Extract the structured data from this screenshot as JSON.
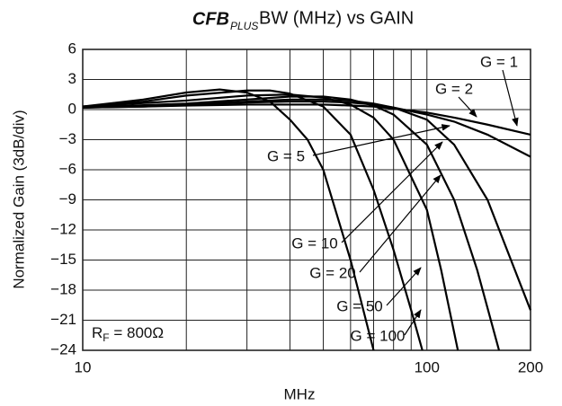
{
  "chart_data": {
    "type": "line",
    "logo": "CFB",
    "logo_sub": "PLUS",
    "title": "BW (MHz) vs GAIN",
    "xlabel": "MHz",
    "ylabel": "Normalized Gain (3dB/div)",
    "xscale": "log",
    "xlim": [
      10,
      200
    ],
    "xticks": [
      10,
      100,
      200
    ],
    "xminor": [
      20,
      30,
      40,
      50,
      60,
      70,
      80,
      90
    ],
    "ylim": [
      -24,
      6
    ],
    "yticks": [
      6,
      3,
      0,
      {
        "value": -3,
        "label": "−3"
      },
      {
        "value": -6,
        "label": "−6"
      },
      {
        "value": -9,
        "label": "−9"
      },
      {
        "value": -12,
        "label": "−12"
      },
      {
        "value": -15,
        "label": "−15"
      },
      {
        "value": -18,
        "label": "−18"
      },
      {
        "value": -21,
        "label": "−21"
      },
      {
        "value": -24,
        "label": "−24"
      }
    ],
    "grid": true,
    "rf_label": {
      "main": "R",
      "sub": "F",
      "rest": " = 800Ω"
    },
    "series": [
      {
        "name": "G = 1",
        "color": "#000000",
        "x": [
          10,
          15,
          20,
          30,
          40,
          50,
          60,
          70,
          80,
          100,
          120,
          150,
          200
        ],
        "values": [
          0.2,
          0.3,
          0.4,
          0.5,
          0.5,
          0.5,
          0.4,
          0.3,
          0.1,
          -0.3,
          -0.8,
          -1.5,
          -2.5
        ]
      },
      {
        "name": "G = 2",
        "color": "#000000",
        "x": [
          10,
          15,
          20,
          30,
          40,
          50,
          60,
          70,
          80,
          100,
          120,
          150,
          200
        ],
        "values": [
          0.2,
          0.3,
          0.5,
          0.7,
          0.8,
          0.8,
          0.7,
          0.5,
          0.2,
          -0.5,
          -1.2,
          -2.5,
          -4.7
        ]
      },
      {
        "name": "G = 5",
        "color": "#000000",
        "x": [
          10,
          20,
          30,
          40,
          50,
          60,
          70,
          80,
          100,
          120,
          150,
          200
        ],
        "values": [
          0.2,
          0.5,
          0.8,
          1.0,
          1.0,
          0.9,
          0.6,
          0.2,
          -1.0,
          -3.5,
          -9,
          -20
        ]
      },
      {
        "name": "G = 10",
        "color": "#000000",
        "x": [
          10,
          20,
          30,
          40,
          50,
          60,
          70,
          80,
          100,
          120,
          140,
          162
        ],
        "values": [
          0.2,
          0.6,
          1.0,
          1.3,
          1.3,
          1.0,
          0.4,
          -0.5,
          -3.5,
          -9,
          -16,
          -24
        ]
      },
      {
        "name": "G = 20",
        "color": "#000000",
        "x": [
          10,
          20,
          30,
          40,
          50,
          60,
          70,
          80,
          100,
          110,
          123
        ],
        "values": [
          0.3,
          0.9,
          1.4,
          1.5,
          1.2,
          0.5,
          -0.8,
          -3,
          -10,
          -16,
          -24
        ]
      },
      {
        "name": "G = 50",
        "color": "#000000",
        "x": [
          10,
          15,
          20,
          30,
          35,
          40,
          50,
          60,
          70,
          80,
          90,
          97
        ],
        "values": [
          0.3,
          0.8,
          1.4,
          1.9,
          1.9,
          1.6,
          0.3,
          -2.5,
          -8,
          -14,
          -20,
          -24
        ]
      },
      {
        "name": "G = 100",
        "color": "#000000",
        "x": [
          10,
          15,
          20,
          25,
          30,
          35,
          40,
          45,
          50,
          60,
          70
        ],
        "values": [
          0.3,
          1.0,
          1.7,
          2.0,
          1.7,
          0.8,
          -1,
          -3,
          -6,
          -15,
          -24
        ]
      }
    ]
  }
}
